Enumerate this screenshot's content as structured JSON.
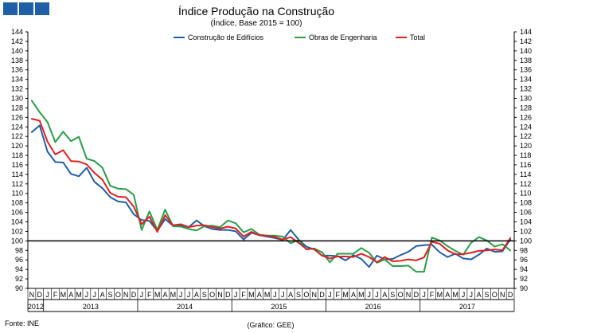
{
  "chart_data": {
    "type": "line",
    "title": "Índice Produção na Construção",
    "subtitle": "(Índice, Base 2015 = 100)",
    "ylim": [
      90,
      144
    ],
    "yticks": [
      90,
      92,
      94,
      96,
      98,
      100,
      102,
      104,
      106,
      108,
      110,
      112,
      114,
      116,
      118,
      120,
      122,
      124,
      126,
      128,
      130,
      132,
      134,
      136,
      138,
      140,
      142,
      144
    ],
    "reference_line": 100,
    "months": [
      "N",
      "D",
      "J",
      "F",
      "M",
      "A",
      "M",
      "J",
      "J",
      "A",
      "S",
      "O",
      "N",
      "D",
      "J",
      "F",
      "M",
      "A",
      "M",
      "J",
      "J",
      "A",
      "S",
      "O",
      "N",
      "D",
      "J",
      "F",
      "M",
      "A",
      "M",
      "J",
      "J",
      "A",
      "S",
      "O",
      "N",
      "D",
      "J",
      "F",
      "M",
      "A",
      "M",
      "J",
      "J",
      "A",
      "S",
      "O",
      "N",
      "D",
      "J",
      "F",
      "M",
      "A",
      "M",
      "J",
      "J",
      "A",
      "S",
      "O",
      "N",
      "D"
    ],
    "years": [
      {
        "label": "2012",
        "start": 0,
        "end": 1
      },
      {
        "label": "2013",
        "start": 2,
        "end": 13
      },
      {
        "label": "2014",
        "start": 14,
        "end": 25
      },
      {
        "label": "2015",
        "start": 26,
        "end": 37
      },
      {
        "label": "2016",
        "start": 38,
        "end": 49
      },
      {
        "label": "2017",
        "start": 50,
        "end": 61
      }
    ],
    "series": [
      {
        "name": "Construção de Edifícios",
        "color": "#1f5fa8",
        "values": [
          122.9,
          124.3,
          118.8,
          116.6,
          116.5,
          114.1,
          113.6,
          115.4,
          112.4,
          111.1,
          109.2,
          108.3,
          108.1,
          105.6,
          104.4,
          104.2,
          102.1,
          104.6,
          103.2,
          103.2,
          102.9,
          104.3,
          103.1,
          102.5,
          102.3,
          102.3,
          102.0,
          100.3,
          101.7,
          101.2,
          100.9,
          100.6,
          100.2,
          102.3,
          100.3,
          98.8,
          98.2,
          96.9,
          96.9,
          96.8,
          95.9,
          97.0,
          96.2,
          94.5,
          96.9,
          96.1,
          96.2,
          97.0,
          97.7,
          98.9,
          99.1,
          99.2,
          97.6,
          96.6,
          97.3,
          96.3,
          96.1,
          97.1,
          98.4,
          97.7,
          97.8,
          100.3
        ]
      },
      {
        "name": "Obras de Engenharia",
        "color": "#2a9d48",
        "values": [
          129.5,
          127.1,
          125.0,
          120.8,
          123.0,
          121.0,
          121.9,
          117.3,
          116.8,
          115.4,
          111.6,
          111.0,
          110.9,
          109.7,
          102.3,
          106.2,
          102.3,
          106.6,
          103.1,
          103.0,
          102.5,
          102.2,
          103.1,
          103.2,
          102.9,
          104.3,
          103.7,
          101.8,
          102.5,
          101.3,
          101.1,
          101.1,
          100.9,
          99.5,
          100.2,
          98.2,
          98.4,
          97.6,
          95.5,
          97.3,
          97.3,
          97.3,
          98.5,
          97.5,
          95.4,
          96.1,
          94.7,
          94.7,
          94.8,
          93.5,
          93.5,
          100.7,
          100.1,
          98.9,
          97.9,
          97.1,
          99.6,
          100.8,
          100.1,
          98.8,
          99.3,
          98.0
        ]
      },
      {
        "name": "Total",
        "color": "#e02020",
        "values": [
          125.7,
          125.3,
          120.9,
          118.2,
          119.1,
          116.8,
          116.7,
          116.1,
          114.3,
          112.9,
          110.1,
          109.3,
          109.2,
          107.2,
          103.5,
          105.1,
          101.9,
          105.4,
          103.3,
          103.5,
          102.9,
          103.2,
          103.3,
          102.9,
          102.6,
          103.0,
          102.6,
          100.9,
          101.9,
          101.2,
          101.1,
          100.8,
          100.3,
          100.8,
          99.6,
          98.3,
          98.3,
          96.9,
          96.3,
          96.7,
          96.7,
          96.6,
          97.3,
          96.6,
          95.5,
          96.6,
          95.7,
          95.8,
          96.1,
          95.9,
          96.5,
          99.8,
          99.4,
          98.0,
          97.2,
          97.2,
          97.5,
          97.9,
          98.0,
          98.2,
          98.0,
          100.6
        ]
      }
    ]
  },
  "footer": {
    "source": "Fonte: INE",
    "credit": "(Gráfico: GEE)"
  },
  "logo_color": "#1f5fa8"
}
